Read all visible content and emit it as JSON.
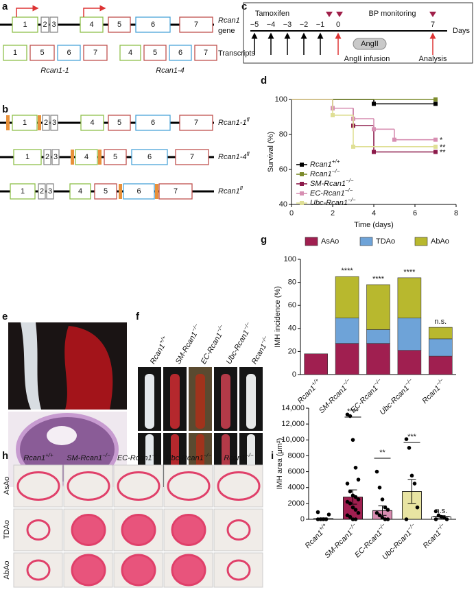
{
  "panel_labels": [
    "a",
    "b",
    "c",
    "d",
    "e",
    "f",
    "g",
    "h",
    "i"
  ],
  "a": {
    "gene_exons": [
      "1",
      "2",
      "3",
      "4",
      "5",
      "6",
      "7"
    ],
    "gene_label": "Rcan1",
    "gene_label2": "gene",
    "transcripts": [
      [
        "1",
        "5",
        "6",
        "7"
      ],
      [
        "4",
        "5",
        "6",
        "7"
      ]
    ],
    "transcripts_label": "Transcripts",
    "isoforms": [
      "Rcan1-1",
      "Rcan1-4"
    ]
  },
  "b": {
    "alleles": [
      {
        "exons": [
          "1",
          "2",
          "3",
          "4",
          "5",
          "6",
          "7"
        ],
        "label": "Rcan1-1fl"
      },
      {
        "exons": [
          "1",
          "2",
          "3",
          "4",
          "5",
          "6",
          "7"
        ],
        "label": "Rcan1-4fl"
      },
      {
        "exons": [
          "1",
          "2",
          "3",
          "4",
          "5",
          "6",
          "7"
        ],
        "label": "Rcan1fl"
      }
    ]
  },
  "c": {
    "tamoxifen": "Tamoxifen",
    "bp": "BP monitoring",
    "days": [
      "−5",
      "−4",
      "−3",
      "−2",
      "−1",
      "0",
      "7"
    ],
    "days_label": "Days",
    "angii": "AngII",
    "infusion": "AngII infusion",
    "analysis": "Analysis"
  },
  "f": {
    "labels": [
      "Rcan1+/+",
      "SM-Rcan1−/−",
      "EC-Rcan1−/−",
      "Ubc-Rcan1−/−",
      "Rcan1−/−"
    ]
  },
  "h": {
    "columns": [
      "Rcan1+/+",
      "SM-Rcan1−/−",
      "EC-Rcan1−/−",
      "Ubc-Rcan1−/−",
      "Rcan1−/−"
    ],
    "rows": [
      "AsAo",
      "TDAo",
      "AbAo"
    ]
  },
  "chart_data": [
    {
      "type": "line",
      "step": true,
      "ylabel": "Survival (%)",
      "xlabel": "Time (days)",
      "xlim": [
        0,
        8
      ],
      "ylim": [
        40,
        100
      ],
      "xticks": [
        0,
        2,
        4,
        6,
        8
      ],
      "yticks": [
        40,
        60,
        80,
        100
      ],
      "series": [
        {
          "name": "Rcan1+/+",
          "color": "#000000",
          "x": [
            0,
            4,
            7
          ],
          "values": [
            100,
            97.5,
            97.5
          ]
        },
        {
          "name": "Rcan1−/−",
          "color": "#7c8b2c",
          "x": [
            0,
            7
          ],
          "values": [
            100,
            100
          ]
        },
        {
          "name": "SM-Rcan1−/−",
          "color": "#8c1a4a",
          "x": [
            0,
            2,
            3,
            4,
            7
          ],
          "values": [
            100,
            95,
            85,
            70,
            70
          ]
        },
        {
          "name": "EC-Rcan1−/−",
          "color": "#d78fb2",
          "x": [
            0,
            2,
            3,
            4,
            5,
            7
          ],
          "values": [
            100,
            95,
            89,
            83,
            77,
            77
          ]
        },
        {
          "name": "Ubc-Rcan1−/−",
          "color": "#dfdf95",
          "x": [
            0,
            2,
            3,
            7
          ],
          "values": [
            100,
            91,
            73,
            73
          ]
        }
      ],
      "annotations": [
        "*",
        "**",
        "**"
      ]
    },
    {
      "type": "stacked_bar",
      "ylabel": "IMH incidence (%)",
      "categories": [
        "Rcan1+/+",
        "SM-Rcan1−/−",
        "EC-Rcan1−/−",
        "Ubc-Rcan1−/−",
        "Rcan1−/−"
      ],
      "ylim": [
        0,
        100
      ],
      "yticks": [
        0,
        20,
        40,
        60,
        80,
        100
      ],
      "series": [
        {
          "name": "AsAo",
          "color": "#a01f50",
          "values": [
            18,
            27,
            27,
            21,
            16
          ]
        },
        {
          "name": "TDAo",
          "color": "#6ea3d8",
          "values": [
            0,
            22,
            12,
            28,
            15
          ]
        },
        {
          "name": "AbAo",
          "color": "#b8b82e",
          "values": [
            0,
            36,
            39,
            35,
            10
          ]
        }
      ],
      "annotations": [
        "****",
        "****",
        "****",
        "n.s."
      ]
    },
    {
      "type": "bar_dots",
      "ylabel": "IMH area (μm²)",
      "categories": [
        "Rcan1+/+",
        "SM-Rcan1−/−",
        "EC-Rcan1−/−",
        "Ubc-Rcan1−/−",
        "Rcan1−/−"
      ],
      "colors": [
        "#ffffff",
        "#a01f50",
        "#d88bb0",
        "#e8e4a2",
        "#ffffff"
      ],
      "values": [
        100,
        2800,
        1100,
        3500,
        300
      ],
      "errors": [
        80,
        900,
        600,
        1500,
        150
      ],
      "points": [
        [
          0,
          0,
          0,
          0,
          600,
          900
        ],
        [
          13200,
          13000,
          10000,
          6500,
          5000,
          4500,
          3500,
          3000,
          2800,
          2500,
          2200,
          2000,
          1500,
          1200,
          800,
          500,
          300,
          0,
          0
        ],
        [
          6000,
          4000,
          2500,
          1500,
          1200,
          800,
          500,
          200,
          0,
          0
        ],
        [
          10100,
          9000,
          5500,
          4500,
          1500,
          0
        ],
        [
          1000,
          500,
          300,
          200,
          0,
          0
        ]
      ],
      "ylim": [
        0,
        14000
      ],
      "yticks": [
        0,
        2000,
        4000,
        6000,
        8000,
        {
          "value": 10000,
          "label": "10,000"
        },
        {
          "value": 12000,
          "label": "12,000"
        },
        {
          "value": 14000,
          "label": "14,000"
        }
      ],
      "annotations": [
        "****",
        "**",
        "***",
        "n.s."
      ]
    }
  ]
}
